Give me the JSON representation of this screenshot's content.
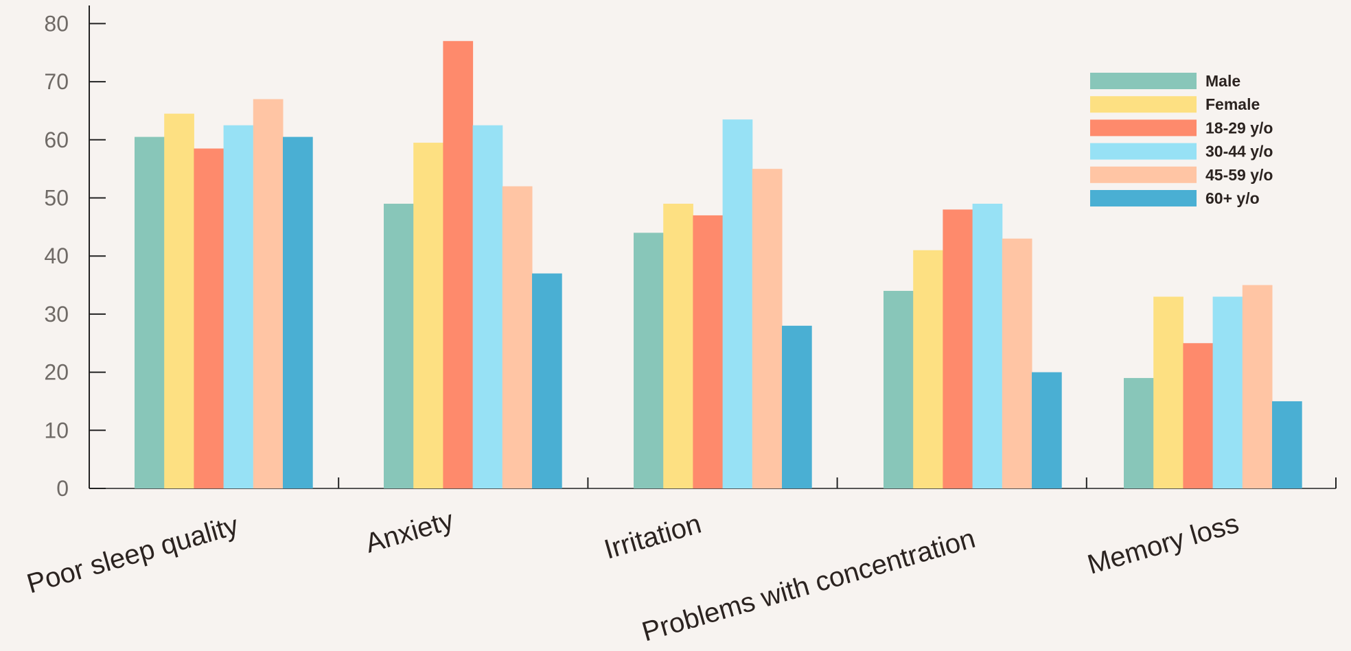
{
  "chart_data": {
    "type": "bar",
    "title": "",
    "xlabel": "",
    "ylabel": "",
    "categories": [
      "Poor sleep quality",
      "Anxiety",
      "Irritation",
      "Problems with concentration",
      "Memory loss"
    ],
    "series": [
      {
        "name": "Male",
        "color": "#88c6b9",
        "values": [
          60.5,
          49,
          44,
          34,
          19
        ]
      },
      {
        "name": "Female",
        "color": "#fde082",
        "values": [
          64.5,
          59.5,
          49,
          41,
          33
        ]
      },
      {
        "name": "18-29 y/o",
        "color": "#fe8a6c",
        "values": [
          58.5,
          77,
          47,
          48,
          25
        ]
      },
      {
        "name": "30-44 y/o",
        "color": "#97e1f5",
        "values": [
          62.5,
          62.5,
          63.5,
          49,
          33
        ]
      },
      {
        "name": "45-59 y/o",
        "color": "#ffc5a4",
        "values": [
          67,
          52,
          55,
          43,
          35
        ]
      },
      {
        "name": "60+ y/o",
        "color": "#4aafd3",
        "values": [
          60.5,
          37,
          28,
          20,
          15
        ]
      }
    ],
    "ylim": [
      0,
      85
    ],
    "yticks": [
      0,
      10,
      20,
      30,
      40,
      50,
      60,
      70,
      80
    ],
    "legend_position": "top-right",
    "grid": false,
    "xtick_rotation": -16
  }
}
